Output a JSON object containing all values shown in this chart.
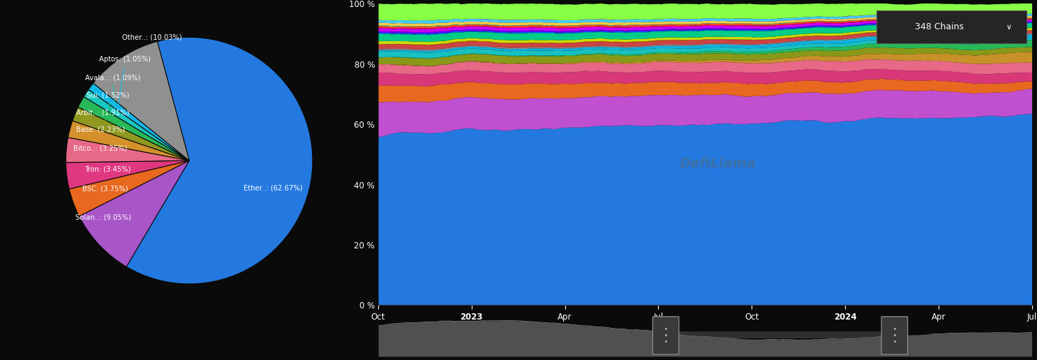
{
  "background_color": "#0a0a0a",
  "pie": {
    "labels": [
      "Ether..: (62.67%)",
      "Solan..: (9.05%)",
      "BSC: (3.75%)",
      "Tron: (3.45%)",
      "Bitco..: (3.25%)",
      "Base: (2.23%)",
      "Arbit..: (1.91%)",
      "Sui: (1.52%)",
      "Avala..: (1.09%)",
      "Aptos: (1.05%)",
      "Other..: (10.03%)"
    ],
    "values": [
      62.67,
      9.05,
      3.75,
      3.45,
      3.25,
      2.23,
      1.91,
      1.52,
      1.09,
      1.05,
      10.03
    ],
    "colors": [
      "#2479e0",
      "#a855c8",
      "#e86820",
      "#e03880",
      "#e86888",
      "#d4902a",
      "#909820",
      "#28b858",
      "#18c8c0",
      "#10b8e8",
      "#909090"
    ],
    "line_colors": [
      "#2479e0",
      "#a855c8",
      "#e86820",
      "#e03880",
      "#e86888",
      "#d4902a",
      "#909820",
      "#28b858",
      "#18c8c0",
      "#10b8e8",
      "#909090"
    ]
  },
  "area_chart": {
    "x_ticks_labels": [
      "Oct",
      "2023",
      "Apr",
      "Jul",
      "Oct",
      "2024",
      "Apr",
      "Jul"
    ],
    "x_ticks_bold": [
      false,
      true,
      false,
      false,
      false,
      true,
      false,
      false
    ],
    "y_ticks": [
      "0 %",
      "20 %",
      "40 %",
      "60 %",
      "80 %",
      "100 %"
    ],
    "y_tick_vals": [
      0,
      20,
      40,
      60,
      80,
      100
    ],
    "watermark": "DefiLlama",
    "layer_colors": [
      "#2479e0",
      "#e03880",
      "#e86820",
      "#a855c8",
      "#e86888",
      "#d4902a",
      "#909820",
      "#28b858",
      "#18c8c0",
      "#10b8e8",
      "#ff2020",
      "#ff6000",
      "#ffcc00",
      "#88cc00",
      "#00cc44",
      "#00ccaa",
      "#0088ff",
      "#8800ff",
      "#ff00aa",
      "#ff4444",
      "#44ffaa",
      "#aaaaff"
    ]
  },
  "button_text": "348 Chains  ∨",
  "text_color": "#ffffff"
}
